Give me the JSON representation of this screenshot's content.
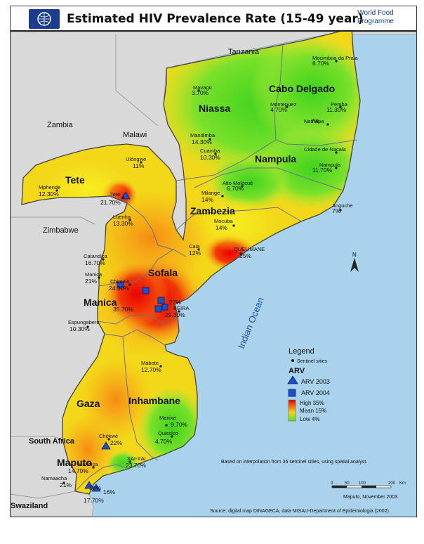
{
  "title": "Estimated HIV Prevalence Rate (15-49 year)",
  "organization": "World Food Programme",
  "countries": [
    "Tanzania",
    "Zambia",
    "Malawi",
    "Zimbabwe",
    "South Africa",
    "Swaziland"
  ],
  "provinces": [
    "Niassa",
    "Cabo Delgado",
    "Nampula",
    "Tete",
    "Zambezia",
    "Sofala",
    "Manica",
    "Gaza",
    "Inhambane",
    "Maputo"
  ],
  "sites": [
    {
      "name": "Mocimboa da Praia",
      "value": "8.70%"
    },
    {
      "name": "Mavago",
      "value": "3.70%"
    },
    {
      "name": "Montepuez",
      "value": "4.70%"
    },
    {
      "name": "Pemba",
      "value": "11.30%"
    },
    {
      "name": "Namapa",
      "value": "7%"
    },
    {
      "name": "Mandimba",
      "value": "14.30%"
    },
    {
      "name": "Cuamba",
      "value": "10.30%"
    },
    {
      "name": "Cidade de Nacala",
      "value": ""
    },
    {
      "name": "Nampula",
      "value": "11.70%"
    },
    {
      "name": "Alto Molócuè",
      "value": "6.70%"
    },
    {
      "name": "Milange",
      "value": "14%"
    },
    {
      "name": "Angoche",
      "value": "7%"
    },
    {
      "name": "Mocuba",
      "value": "14%"
    },
    {
      "name": "QUELIMANE",
      "value": "25%"
    },
    {
      "name": "Ulóngwe",
      "value": "11%"
    },
    {
      "name": "Mphende",
      "value": "12.30%"
    },
    {
      "name": "Tete",
      "value": "21.70%"
    },
    {
      "name": "Luenha",
      "value": "13.30%"
    },
    {
      "name": "Caia",
      "value": "12%"
    },
    {
      "name": "Catandica",
      "value": "16.70%"
    },
    {
      "name": "Manica",
      "value": "21%"
    },
    {
      "name": "Chimoio",
      "value": "24.30%"
    },
    {
      "name": "BEIRA",
      "value": "29.30%"
    },
    {
      "name": "",
      "value": "35.70%"
    },
    {
      "name": "",
      "value": "27%"
    },
    {
      "name": "Espungabera",
      "value": "10.30%"
    },
    {
      "name": "Mabote",
      "value": "12.70%"
    },
    {
      "name": "Maxixe",
      "value": "9.70%"
    },
    {
      "name": "Quissico",
      "value": "4.70%"
    },
    {
      "name": "Chókwè",
      "value": "22%"
    },
    {
      "name": "XAI-XAI",
      "value": "23.70%"
    },
    {
      "name": "Manhiça",
      "value": "14.70%"
    },
    {
      "name": "Namaacha",
      "value": "21%"
    },
    {
      "name": "",
      "value": "18%"
    },
    {
      "name": "",
      "value": "16%"
    },
    {
      "name": "",
      "value": "17.70%"
    }
  ],
  "ocean_label": "Indian Ocean",
  "north_label": "N",
  "legend": {
    "title": "Legend",
    "sentinel": "Sentinel sities",
    "arv_title": "ARV",
    "arv2003": "ARV 2003",
    "arv2004": "ARV 2004",
    "high": "High 35%",
    "mean": "Mean 15%",
    "low": "Low 4%",
    "colors": {
      "high": "#ee0000",
      "mean": "#f7a21b",
      "low": "#55dd22",
      "arv": "#1f4fc8"
    }
  },
  "note": "Based on interpolation from 36 sentinel sities, using spatial analyst.",
  "scale": {
    "ticks": [
      "0",
      "50",
      "100",
      "200"
    ],
    "unit": "Km"
  },
  "credit": "Maputo, November 2003.",
  "source": "Source: digital map DINAGECA, data MISAU-Department of Epidemiologia (2002)."
}
